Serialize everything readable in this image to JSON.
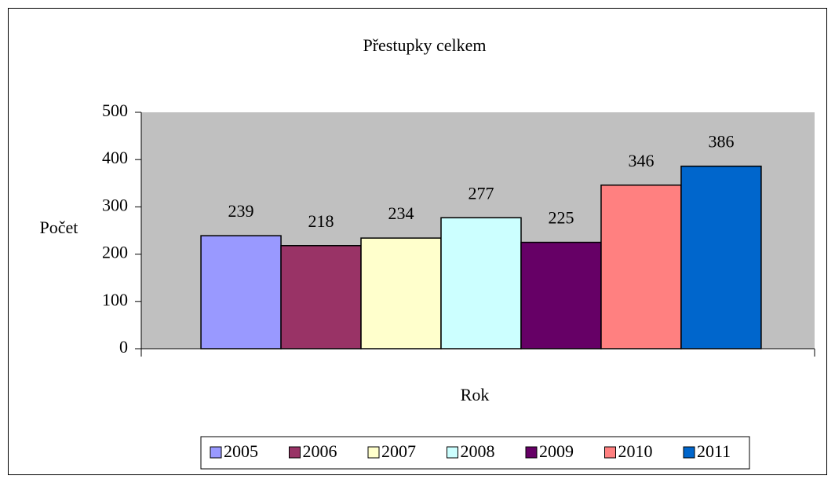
{
  "chart_data": {
    "type": "bar",
    "title": "Přestupky celkem",
    "x_label": "Rok",
    "y_label": "Počet",
    "categories": [
      null
    ],
    "series": [
      {
        "name": "2005",
        "color": "#9999FF",
        "values": [
          239
        ]
      },
      {
        "name": "2006",
        "color": "#993366",
        "values": [
          218
        ]
      },
      {
        "name": "2007",
        "color": "#FFFFCC",
        "values": [
          234
        ]
      },
      {
        "name": "2008",
        "color": "#CCFFFF",
        "values": [
          277
        ]
      },
      {
        "name": "2009",
        "color": "#660066",
        "values": [
          225
        ]
      },
      {
        "name": "2010",
        "color": "#FF8080",
        "values": [
          346
        ]
      },
      {
        "name": "2011",
        "color": "#0066CC",
        "values": [
          386
        ]
      }
    ],
    "ylim": [
      0,
      500
    ],
    "yticks": [
      0,
      100,
      200,
      300,
      400,
      500
    ],
    "plot_background": "#C0C0C0",
    "legend": "bottom",
    "data_labels": true
  }
}
